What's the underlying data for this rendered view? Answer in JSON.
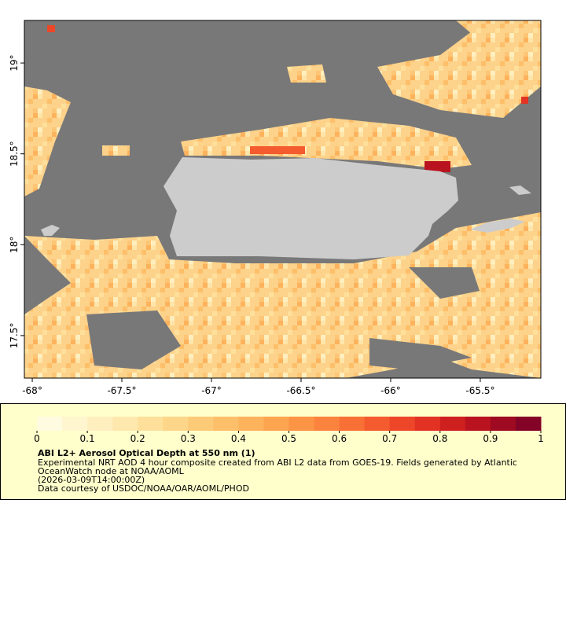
{
  "chart_data": {
    "type": "map",
    "title": "ABI L2+ Aerosol Optical Depth at 550 nm (1)",
    "description": [
      "Experimental NRT AOD 4 hour composite created from ABI L2 data from GOES-19. Fields generated by Atlantic",
      "OceanWatch node at NOAA/AOML",
      "(2026-03-09T14:00:00Z)",
      "Data courtesy of USDOC/NOAA/OAR/AOML/PHOD"
    ],
    "xlim": [
      -68.044,
      -65.162
    ],
    "ylim": [
      17.266,
      19.234
    ],
    "xticks": [
      {
        "value": -68,
        "label": "-68°"
      },
      {
        "value": -67.5,
        "label": "-67.5°"
      },
      {
        "value": -67,
        "label": "-67°"
      },
      {
        "value": -66.5,
        "label": "-66.5°"
      },
      {
        "value": -66,
        "label": "-66°"
      },
      {
        "value": -65.5,
        "label": "-65.5°"
      }
    ],
    "yticks": [
      {
        "value": 17.5,
        "label": "17.5°"
      },
      {
        "value": 18,
        "label": "18°"
      },
      {
        "value": 18.5,
        "label": "18.5°"
      },
      {
        "value": 19,
        "label": "19°"
      }
    ],
    "colorbar": {
      "lim": [
        0,
        1
      ],
      "ticks": [
        0,
        0.1,
        0.2,
        0.3,
        0.4,
        0.5,
        0.6,
        0.7,
        0.8,
        0.9,
        1
      ],
      "colors": [
        "#fffbe0",
        "#fff5cf",
        "#ffefbf",
        "#fee8ad",
        "#fee09b",
        "#fed689",
        "#fdcb78",
        "#fdbf69",
        "#fdb25c",
        "#fda450",
        "#fc9446",
        "#fb833d",
        "#f87035",
        "#f45b2e",
        "#ed4628",
        "#e13223",
        "#cf2020",
        "#b8131f",
        "#9e0a22",
        "#830427"
      ]
    }
  }
}
